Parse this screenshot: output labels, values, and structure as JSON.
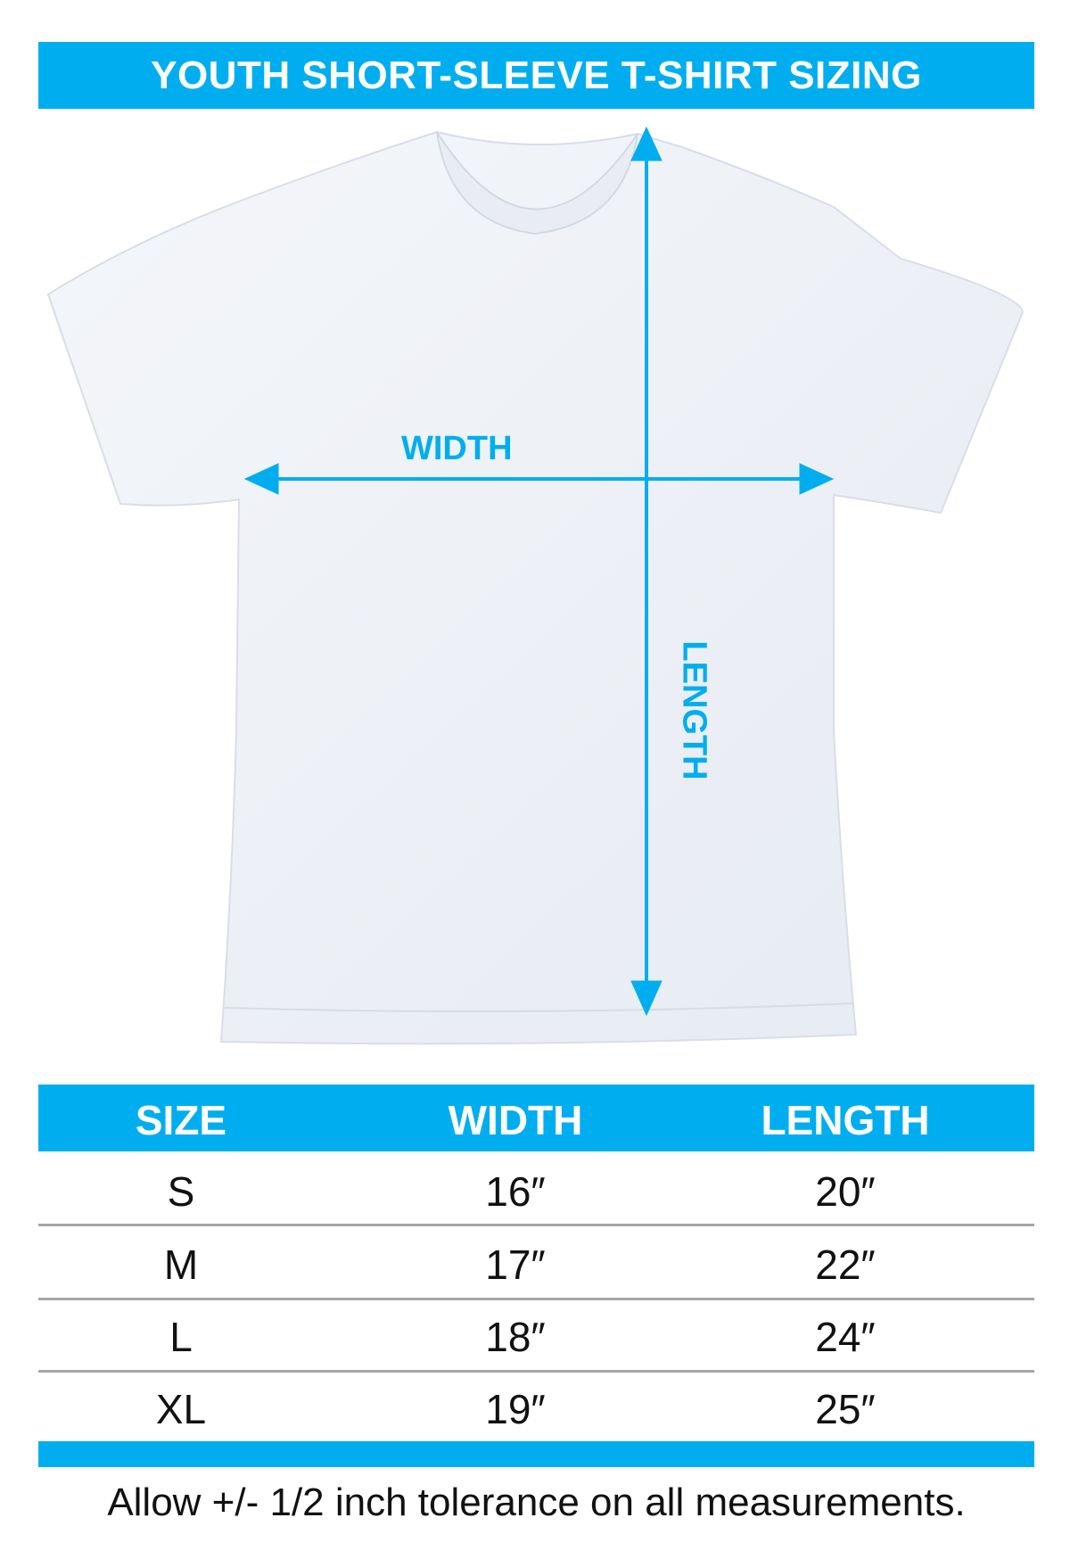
{
  "title": "YOUTH SHORT-SLEEVE T-SHIRT SIZING",
  "diagram": {
    "width_label": "WIDTH",
    "length_label": "LENGTH"
  },
  "table": {
    "headers": [
      "SIZE",
      "WIDTH",
      "LENGTH"
    ],
    "rows": [
      [
        "S",
        "16″",
        "20″"
      ],
      [
        "M",
        "17″",
        "22″"
      ],
      [
        "L",
        "18″",
        "24″"
      ],
      [
        "XL",
        "19″",
        "25″"
      ]
    ]
  },
  "footer": "Allow +/- 1/2 inch tolerance on all measurements.",
  "colors": {
    "accent": "#00aeef",
    "divider": "#a6a6a6"
  }
}
